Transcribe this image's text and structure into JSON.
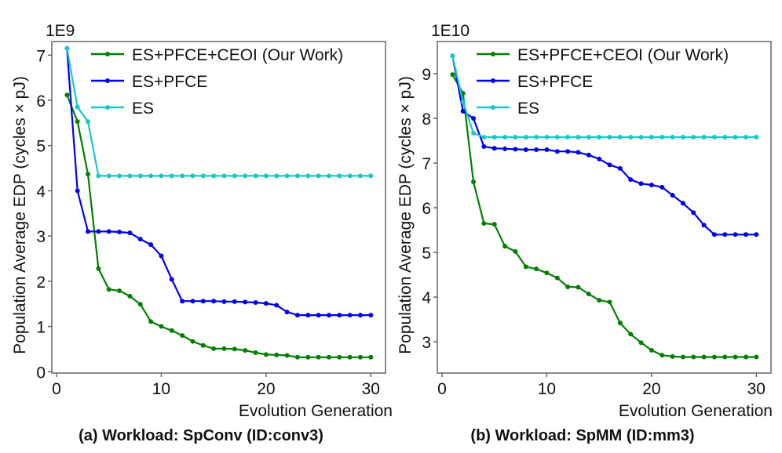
{
  "chart_data": [
    {
      "type": "line",
      "caption": "(a) Workload: SpConv (ID:conv3)",
      "xlabel": "Evolution Generation",
      "ylabel": "Population Average EDP (cycles × pJ)",
      "y_multiplier_label": "1E9",
      "xlim": [
        -0.45,
        31.4
      ],
      "ylim": [
        -0.03,
        7.3
      ],
      "xticks": [
        0,
        10,
        20,
        30
      ],
      "yticks": [
        0,
        1,
        2,
        3,
        4,
        5,
        6,
        7
      ],
      "grid": false,
      "legend_position": "top-right",
      "x": [
        1,
        2,
        3,
        4,
        5,
        6,
        7,
        8,
        9,
        10,
        11,
        12,
        13,
        14,
        15,
        16,
        17,
        18,
        19,
        20,
        21,
        22,
        23,
        24,
        25,
        26,
        27,
        28,
        29,
        30
      ],
      "series": [
        {
          "name": "ES+PFCE+CEOI (Our Work)",
          "color": "#008000",
          "values": [
            6.12,
            5.53,
            4.37,
            2.28,
            1.82,
            1.79,
            1.67,
            1.49,
            1.11,
            1.0,
            0.91,
            0.8,
            0.67,
            0.58,
            0.51,
            0.51,
            0.5,
            0.47,
            0.42,
            0.38,
            0.37,
            0.36,
            0.32,
            0.32,
            0.32,
            0.32,
            0.32,
            0.32,
            0.32,
            0.32
          ]
        },
        {
          "name": "ES+PFCE",
          "color": "#0000ee",
          "values": [
            7.15,
            4.0,
            3.1,
            3.1,
            3.1,
            3.09,
            3.07,
            2.93,
            2.81,
            2.56,
            2.04,
            1.56,
            1.56,
            1.56,
            1.56,
            1.55,
            1.55,
            1.54,
            1.53,
            1.51,
            1.47,
            1.32,
            1.25,
            1.25,
            1.25,
            1.25,
            1.25,
            1.25,
            1.25,
            1.25
          ]
        },
        {
          "name": "ES",
          "color": "#1ac8c8",
          "values": [
            7.15,
            5.85,
            5.53,
            4.33,
            4.33,
            4.33,
            4.33,
            4.33,
            4.33,
            4.33,
            4.33,
            4.33,
            4.33,
            4.33,
            4.33,
            4.33,
            4.33,
            4.33,
            4.33,
            4.33,
            4.33,
            4.33,
            4.33,
            4.33,
            4.33,
            4.33,
            4.33,
            4.33,
            4.33,
            4.33
          ]
        }
      ]
    },
    {
      "type": "line",
      "caption": "(b) Workload: SpMM (ID:mm3)",
      "xlabel": "Evolution Generation",
      "ylabel": "Population Average EDP (cycles × pJ)",
      "y_multiplier_label": "1E10",
      "xlim": [
        -0.45,
        31.4
      ],
      "ylim": [
        2.3,
        9.72
      ],
      "xticks": [
        0,
        10,
        20,
        30
      ],
      "yticks": [
        3,
        4,
        5,
        6,
        7,
        8,
        9
      ],
      "grid": false,
      "legend_position": "top-right",
      "x": [
        1,
        2,
        3,
        4,
        5,
        6,
        7,
        8,
        9,
        10,
        11,
        12,
        13,
        14,
        15,
        16,
        17,
        18,
        19,
        20,
        21,
        22,
        23,
        24,
        25,
        26,
        27,
        28,
        29,
        30
      ],
      "series": [
        {
          "name": "ES+PFCE+CEOI (Our Work)",
          "color": "#008000",
          "values": [
            8.98,
            8.56,
            6.58,
            5.65,
            5.63,
            5.14,
            5.02,
            4.68,
            4.63,
            4.54,
            4.43,
            4.23,
            4.22,
            4.07,
            3.93,
            3.89,
            3.42,
            3.17,
            2.98,
            2.81,
            2.7,
            2.67,
            2.66,
            2.66,
            2.66,
            2.66,
            2.66,
            2.66,
            2.66,
            2.66
          ]
        },
        {
          "name": "ES+PFCE",
          "color": "#0000ee",
          "values": [
            9.4,
            8.16,
            8.0,
            7.37,
            7.33,
            7.32,
            7.31,
            7.3,
            7.3,
            7.3,
            7.26,
            7.26,
            7.24,
            7.18,
            7.09,
            6.96,
            6.88,
            6.63,
            6.54,
            6.51,
            6.46,
            6.28,
            6.1,
            5.89,
            5.61,
            5.4,
            5.4,
            5.4,
            5.4,
            5.4
          ]
        },
        {
          "name": "ES",
          "color": "#1ac8c8",
          "values": [
            9.4,
            8.37,
            7.67,
            7.58,
            7.58,
            7.58,
            7.58,
            7.58,
            7.58,
            7.58,
            7.58,
            7.58,
            7.58,
            7.58,
            7.58,
            7.58,
            7.58,
            7.58,
            7.58,
            7.58,
            7.58,
            7.58,
            7.58,
            7.58,
            7.58,
            7.58,
            7.58,
            7.58,
            7.58,
            7.58
          ]
        }
      ]
    }
  ]
}
